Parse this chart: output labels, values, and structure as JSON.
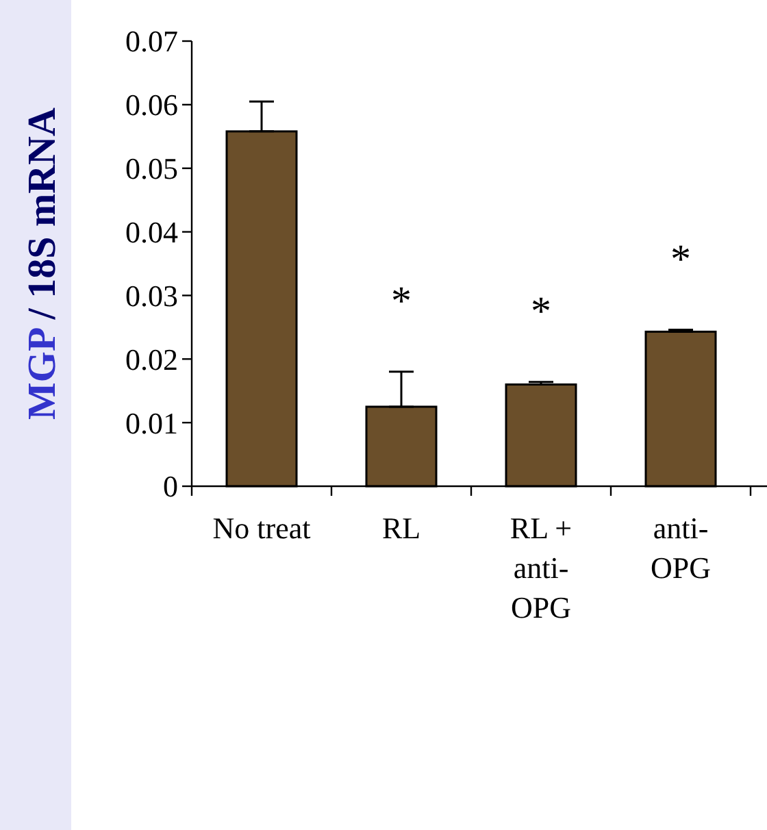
{
  "chart_data": {
    "type": "bar",
    "ylabel": "MGP / 18S mRNA",
    "categories": [
      "No treat",
      "RL",
      "RL + anti-OPG",
      "anti-OPG"
    ],
    "values": [
      0.0558,
      0.0125,
      0.016,
      0.0243
    ],
    "errors": [
      [
        0.0558,
        0.0605
      ],
      [
        0.0125,
        0.018
      ],
      [
        0.016,
        0.0164
      ],
      [
        0.0243,
        0.0246
      ]
    ],
    "color": "#6b4f2a",
    "ylim": [
      0,
      0.07
    ],
    "yticks": [
      {
        "value": 0,
        "label": "0"
      },
      0.01,
      0.02,
      0.03,
      0.04,
      0.05,
      0.06,
      0.07
    ],
    "grid": false,
    "annotations": [
      "*",
      "*",
      "*"
    ]
  }
}
